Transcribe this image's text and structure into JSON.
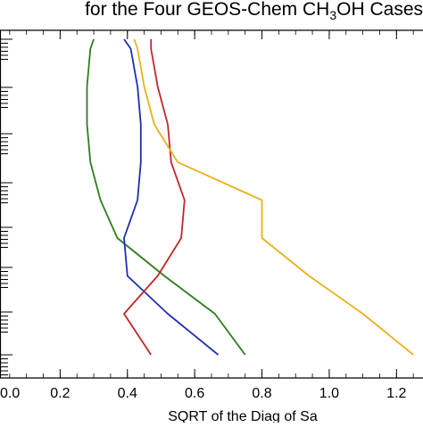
{
  "chart_data": {
    "type": "line",
    "title": "for the Four GEOS-Chem CH",
    "title_subscript": "3",
    "title_suffix": "OH Cases",
    "xlabel": "SQRT of the Diag of Sa",
    "ylabel": "",
    "xlim": [
      0.0,
      1.3
    ],
    "ylim": [
      0,
      10
    ],
    "x_ticks": [
      0.0,
      0.2,
      0.4,
      0.6,
      0.8,
      1.0,
      1.2
    ],
    "x_tick_labels": [
      "0.0",
      "0.2",
      "0.4",
      "0.6",
      "0.8",
      "1.0",
      "1.2"
    ],
    "grid": false,
    "series": [
      {
        "color": "#2f7d1e",
        "x": [
          0.75,
          0.66,
          0.51,
          0.37,
          0.32,
          0.29,
          0.28,
          0.28,
          0.29,
          0.3
        ],
        "y": [
          0.0,
          1.3,
          2.5,
          3.7,
          4.9,
          6.1,
          7.3,
          8.5,
          9.7,
          10.0
        ]
      },
      {
        "color": "#1f2fb0",
        "x": [
          0.67,
          0.52,
          0.4,
          0.39,
          0.43,
          0.44,
          0.44,
          0.43,
          0.41,
          0.39
        ],
        "y": [
          0.0,
          1.3,
          2.5,
          3.7,
          4.9,
          6.1,
          7.3,
          8.5,
          9.7,
          10.0
        ]
      },
      {
        "color": "#c0282a",
        "x": [
          0.47,
          0.39,
          0.49,
          0.56,
          0.57,
          0.53,
          0.52,
          0.49,
          0.47,
          0.47
        ],
        "y": [
          0.0,
          1.3,
          2.5,
          3.7,
          4.9,
          6.1,
          7.3,
          8.5,
          9.7,
          10.0
        ]
      },
      {
        "color": "#e8b218",
        "x": [
          1.25,
          1.1,
          0.94,
          0.8,
          0.8,
          0.55,
          0.48,
          0.45,
          0.43,
          0.42
        ],
        "y": [
          0.0,
          1.3,
          2.5,
          3.7,
          4.9,
          6.1,
          7.3,
          8.5,
          9.7,
          10.0
        ]
      }
    ]
  }
}
